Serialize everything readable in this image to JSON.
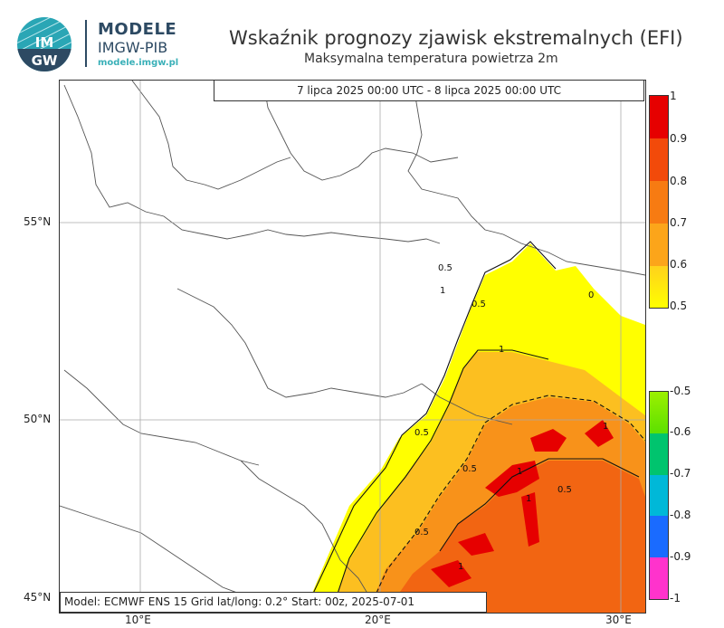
{
  "header": {
    "logo_text": "IMGW",
    "brand_line1": "MODELE",
    "brand_line2": "IMGW-PIB",
    "brand_url": "modele.imgw.pl",
    "title": "Wskaźnik prognozy zjawisk ekstremalnych (EFI)",
    "subtitle": "Maksymalna temperatura powietrza 2m"
  },
  "map": {
    "valid_period": "7 lipca 2025 00:00 UTC - 8 lipca 2025 00:00 UTC",
    "info": "Model: ECMWF  ENS 15  Grid lat/long: 0.2°  Start: 00z, 2025-07-01",
    "lat_labels": [
      "55°N",
      "50°N",
      "45°N"
    ],
    "lon_labels": [
      "10°E",
      "20°E",
      "30°E"
    ],
    "contour_labels": [
      "0.5",
      "1",
      "0"
    ]
  },
  "colorbar_positive": {
    "labels": [
      "1",
      "0.9",
      "0.8",
      "0.7",
      "0.6",
      "0.5"
    ],
    "colors": [
      "#e60000",
      "#f24a0a",
      "#f77b12",
      "#fca51a",
      "#ffd21c",
      "#ffff00"
    ]
  },
  "colorbar_negative": {
    "labels": [
      "-0.5",
      "-0.6",
      "-0.7",
      "-0.8",
      "-0.9",
      "-1"
    ],
    "colors": [
      "#7ee800",
      "#00c46e",
      "#00b8d8",
      "#1a6bff",
      "#ff33cc"
    ]
  }
}
